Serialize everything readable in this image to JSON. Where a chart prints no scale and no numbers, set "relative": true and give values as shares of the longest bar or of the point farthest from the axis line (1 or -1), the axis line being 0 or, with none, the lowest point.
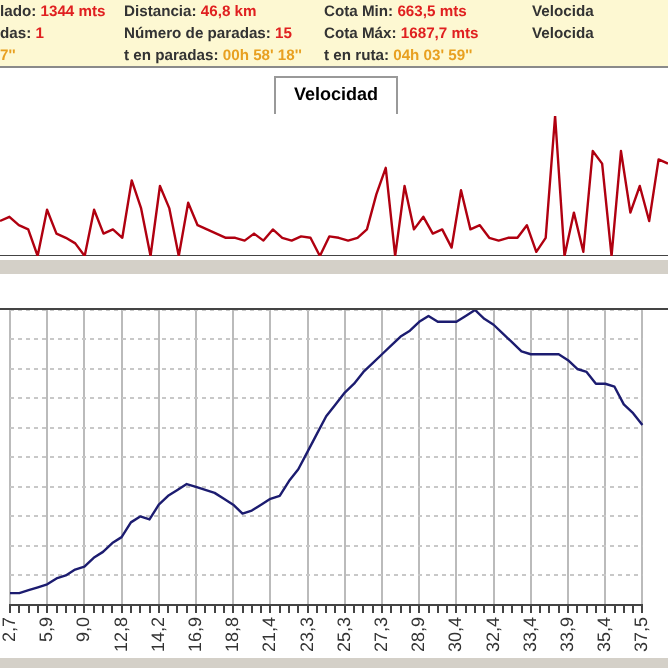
{
  "chart_data": [
    {
      "type": "other",
      "annotations": [
        "lado: 1344 mts",
        "Distancia: 46,8 km",
        "Cota Min: 663,5 mts",
        "Velocida",
        "das: 1",
        "Número de paradas: 15",
        "Cota Máx: 1687,7 mts",
        "Velocida",
        "7''",
        "t en paradas: 00h 58' 18''",
        "t en ruta: 04h 03' 59''"
      ]
    },
    {
      "type": "line",
      "title": "Velocidad",
      "relative": true,
      "tick_labels": false,
      "color": "#b00010",
      "categories": [
        null,
        null,
        null,
        null,
        null,
        null,
        null,
        null,
        null,
        null,
        null,
        null,
        null,
        null,
        null,
        null,
        null,
        null,
        null,
        null,
        null,
        null,
        null,
        null,
        null,
        null,
        null,
        null,
        null,
        null,
        null,
        null,
        null,
        null,
        null,
        null,
        null,
        null,
        null,
        null,
        null,
        null,
        null,
        null,
        null,
        null,
        null,
        null,
        null,
        null,
        null,
        null,
        null,
        null,
        null,
        null,
        null,
        null,
        null,
        null,
        null,
        null,
        null,
        null,
        null,
        null,
        null,
        null,
        null,
        null,
        null,
        null
      ],
      "values": [
        0.25,
        0.28,
        0.22,
        0.19,
        0,
        0.33,
        0.16,
        0.13,
        0.09,
        0,
        0.33,
        0.16,
        0.19,
        0.13,
        0.54,
        0.34,
        0,
        0.5,
        0.34,
        0,
        0.38,
        0.22,
        0.19,
        0.16,
        0.13,
        0.13,
        0.11,
        0.16,
        0.11,
        0.19,
        0.13,
        0.11,
        0.14,
        0.13,
        0,
        0.14,
        0.13,
        0.11,
        0.13,
        0.19,
        0.44,
        0.63,
        0,
        0.5,
        0.19,
        0.28,
        0.16,
        0.19,
        0.06,
        0.47,
        0.19,
        0.22,
        0.13,
        0.11,
        0.13,
        0.13,
        0.22,
        0.03,
        0.13,
        1,
        0,
        0.31,
        0.03,
        0.75,
        0.66,
        0,
        0.75,
        0.31,
        0.5,
        0.25,
        0.69,
        0.66
      ]
    },
    {
      "type": "line",
      "relative": true,
      "grid": true,
      "tick_labels": "x",
      "color": "#1c1c70",
      "categories": [
        "2,7",
        null,
        null,
        null,
        "5,9",
        null,
        null,
        null,
        "9,0",
        null,
        null,
        null,
        "12,8",
        null,
        null,
        null,
        "14,2",
        null,
        null,
        null,
        "16,9",
        null,
        null,
        null,
        "18,8",
        null,
        null,
        null,
        "21,4",
        null,
        null,
        null,
        "23,3",
        null,
        null,
        null,
        "25,3",
        null,
        null,
        null,
        "27,3",
        null,
        null,
        null,
        "28,9",
        null,
        null,
        null,
        "30,4",
        null,
        null,
        null,
        "32,4",
        null,
        null,
        null,
        "33,4",
        null,
        null,
        null,
        "33,9",
        null,
        null,
        null,
        "35,4",
        null,
        null,
        null,
        "37,5"
      ],
      "values": [
        0.04,
        0.04,
        0.05,
        0.06,
        0.07,
        0.09,
        0.1,
        0.12,
        0.13,
        0.16,
        0.18,
        0.21,
        0.23,
        0.28,
        0.3,
        0.29,
        0.34,
        0.37,
        0.39,
        0.41,
        0.4,
        0.39,
        0.38,
        0.36,
        0.34,
        0.31,
        0.32,
        0.34,
        0.36,
        0.37,
        0.42,
        0.46,
        0.52,
        0.58,
        0.64,
        0.68,
        0.72,
        0.75,
        0.79,
        0.82,
        0.85,
        0.88,
        0.91,
        0.93,
        0.96,
        0.98,
        0.96,
        0.96,
        0.96,
        0.98,
        1,
        0.97,
        0.95,
        0.92,
        0.89,
        0.86,
        0.85,
        0.85,
        0.85,
        0.85,
        0.83,
        0.8,
        0.79,
        0.75,
        0.75,
        0.74,
        0.68,
        0.65,
        0.61
      ]
    }
  ]
}
